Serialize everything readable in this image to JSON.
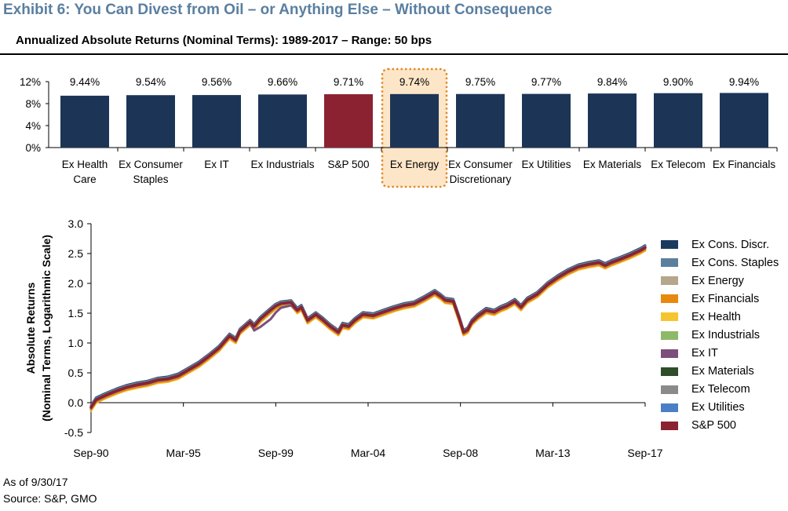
{
  "exhibit_title": "Exhibit 6: You Can Divest from Oil – or Anything Else – Without Consequence",
  "footnotes": {
    "as_of": "As of 9/30/17",
    "source": "Source: S&P, GMO"
  },
  "chart_data": [
    {
      "type": "bar",
      "title": "Annualized Absolute Returns (Nominal Terms): 1989-2017 – Range: 50 bps",
      "categories": [
        [
          "Ex Health",
          "Care"
        ],
        [
          "Ex Consumer",
          "Staples"
        ],
        [
          "Ex IT"
        ],
        [
          "Ex Industrials"
        ],
        [
          "S&P 500"
        ],
        [
          "Ex Energy"
        ],
        [
          "Ex Consumer",
          "Discretionary"
        ],
        [
          "Ex Utilities"
        ],
        [
          "Ex Materials"
        ],
        [
          "Ex Telecom"
        ],
        [
          "Ex Financials"
        ]
      ],
      "values": [
        9.44,
        9.54,
        9.56,
        9.66,
        9.71,
        9.74,
        9.75,
        9.77,
        9.84,
        9.9,
        9.94
      ],
      "data_labels": [
        "9.44%",
        "9.54%",
        "9.56%",
        "9.66%",
        "9.71%",
        "9.74%",
        "9.75%",
        "9.77%",
        "9.84%",
        "9.90%",
        "9.94%"
      ],
      "ylim": [
        0,
        12
      ],
      "yticks": [
        "0%",
        "4%",
        "8%",
        "12%"
      ],
      "bar_color": "#1c3557",
      "highlight_bar_color": "#8b2232",
      "highlight_bar": "S&P 500",
      "emphasized_category": "Ex Energy",
      "emphasis_fill": "#fde6c8",
      "emphasis_border": "#e08a2a",
      "grid": false
    },
    {
      "type": "line",
      "ylabel": "Absolute Returns",
      "ylabel2": "(Nominal Terms, Logarithmic Scale)",
      "xticks": [
        "Sep-90",
        "Mar-95",
        "Sep-99",
        "Mar-04",
        "Sep-08",
        "Mar-13",
        "Sep-17"
      ],
      "xtick_years": [
        1990.75,
        1995.25,
        1999.75,
        2004.25,
        2008.75,
        2013.25,
        2017.75
      ],
      "yticks": [
        "-0.5",
        "0.0",
        "0.5",
        "1.0",
        "1.5",
        "2.0",
        "2.5",
        "3.0"
      ],
      "ylim": [
        -0.5,
        3.0
      ],
      "grid": false,
      "legend_position": "right",
      "base_path": {
        "x": [
          1990.75,
          1991.0,
          1991.5,
          1992.0,
          1992.5,
          1993.0,
          1993.5,
          1994.0,
          1994.5,
          1995.0,
          1995.5,
          1996.0,
          1996.5,
          1997.0,
          1997.5,
          1997.8,
          1998.0,
          1998.5,
          1998.7,
          1999.0,
          1999.5,
          1999.75,
          2000.0,
          2000.5,
          2000.8,
          2001.0,
          2001.3,
          2001.7,
          2002.0,
          2002.4,
          2002.6,
          2002.8,
          2003.0,
          2003.3,
          2003.6,
          2004.0,
          2004.5,
          2005.0,
          2005.5,
          2006.0,
          2006.5,
          2007.0,
          2007.5,
          2007.8,
          2008.0,
          2008.4,
          2008.7,
          2008.9,
          2009.1,
          2009.3,
          2009.6,
          2010.0,
          2010.4,
          2010.7,
          2011.0,
          2011.4,
          2011.7,
          2012.0,
          2012.5,
          2013.0,
          2013.5,
          2014.0,
          2014.5,
          2015.0,
          2015.5,
          2015.8,
          2016.1,
          2016.5,
          2017.0,
          2017.5,
          2017.75
        ],
        "y": [
          -0.08,
          0.05,
          0.13,
          0.2,
          0.26,
          0.3,
          0.33,
          0.38,
          0.4,
          0.45,
          0.55,
          0.65,
          0.78,
          0.92,
          1.12,
          1.05,
          1.2,
          1.35,
          1.28,
          1.4,
          1.55,
          1.62,
          1.66,
          1.68,
          1.55,
          1.6,
          1.38,
          1.48,
          1.4,
          1.28,
          1.23,
          1.18,
          1.3,
          1.28,
          1.38,
          1.48,
          1.46,
          1.52,
          1.58,
          1.63,
          1.66,
          1.75,
          1.85,
          1.78,
          1.72,
          1.7,
          1.4,
          1.18,
          1.22,
          1.35,
          1.45,
          1.55,
          1.52,
          1.58,
          1.62,
          1.7,
          1.6,
          1.72,
          1.82,
          1.98,
          2.1,
          2.2,
          2.28,
          2.32,
          2.35,
          2.3,
          2.35,
          2.4,
          2.47,
          2.55,
          2.6
        ]
      },
      "series": [
        {
          "name": "Ex Cons. Discr.",
          "color": "#1b3a5e",
          "offset": 0.035
        },
        {
          "name": "Ex Cons. Staples",
          "color": "#5d7f9e",
          "offset": 0.025
        },
        {
          "name": "Ex Energy",
          "color": "#b5a68c",
          "offset": 0.0
        },
        {
          "name": "Ex Financials",
          "color": "#e8890f",
          "offset": -0.035
        },
        {
          "name": "Ex Health",
          "color": "#f5c431",
          "offset": -0.05
        },
        {
          "name": "Ex Industrials",
          "color": "#8fb96a",
          "offset": -0.01
        },
        {
          "name": "Ex IT",
          "color": "#7d4e7c",
          "offset": -0.01,
          "overrides": [
            [
              1998.7,
              -0.06
            ],
            [
              1999.0,
              -0.12
            ],
            [
              1999.5,
              -0.14
            ],
            [
              1999.75,
              -0.1
            ],
            [
              2000.0,
              -0.06
            ],
            [
              2000.5,
              -0.04
            ]
          ]
        },
        {
          "name": "Ex Materials",
          "color": "#2e4d28",
          "offset": 0.005
        },
        {
          "name": "Ex Telecom",
          "color": "#8a8a8a",
          "offset": 0.015
        },
        {
          "name": "Ex Utilities",
          "color": "#4a7fc6",
          "offset": 0.01
        },
        {
          "name": "S&P 500",
          "color": "#8b2232",
          "offset": 0.0,
          "emphasized": true
        }
      ]
    }
  ]
}
